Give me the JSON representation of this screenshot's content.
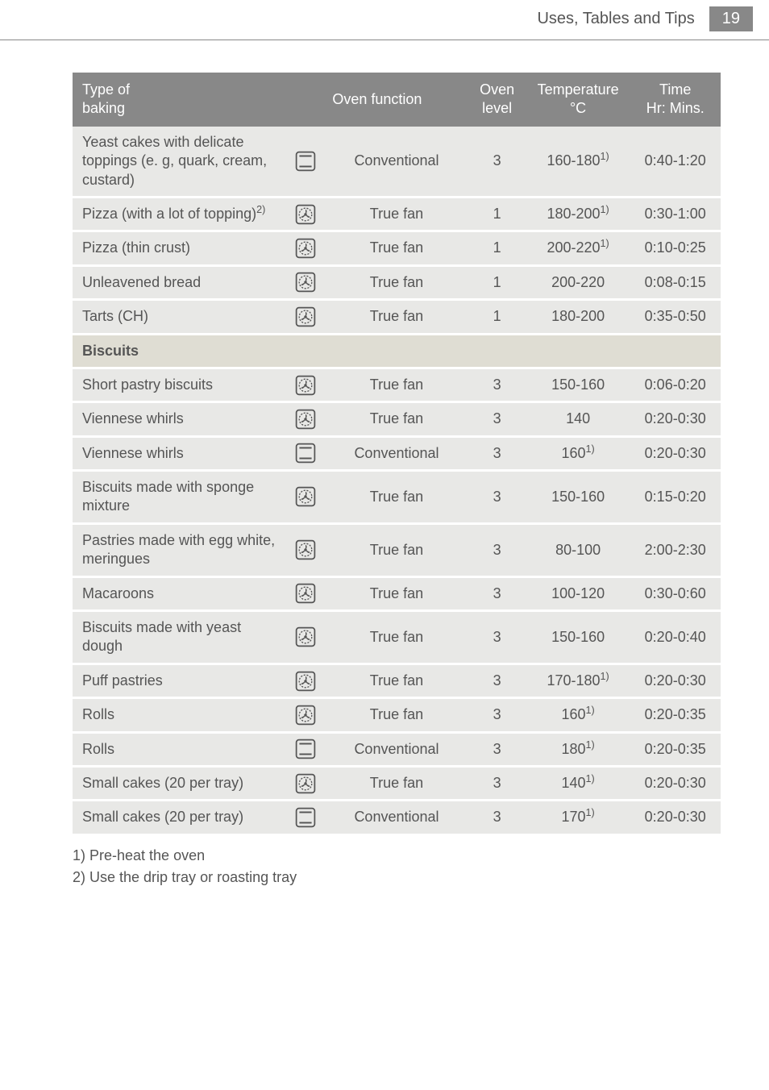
{
  "header": {
    "title": "Uses, Tables and Tips",
    "page_number": "19"
  },
  "table": {
    "columns": {
      "type": "Type of\nbaking",
      "function": "Oven function",
      "level": "Oven\nlevel",
      "temp": "Temperature\n°C",
      "time": "Time\nHr: Mins."
    },
    "rows": [
      {
        "type": "Yeast cakes with delicate toppings (e. g, quark, cream, custard)",
        "icon": "conventional",
        "func": "Conventional",
        "level": "3",
        "temp": "160-180",
        "temp_sup": "1)",
        "time": "0:40-1:20"
      },
      {
        "type": "Pizza (with a lot of topping)",
        "type_sup": "2)",
        "icon": "fan",
        "func": "True fan",
        "level": "1",
        "temp": "180-200",
        "temp_sup": "1)",
        "time": "0:30-1:00"
      },
      {
        "type": "Pizza (thin crust)",
        "icon": "fan",
        "func": "True fan",
        "level": "1",
        "temp": "200-220",
        "temp_sup": "1)",
        "time": "0:10-0:25"
      },
      {
        "type": "Unleavened bread",
        "icon": "fan",
        "func": "True fan",
        "level": "1",
        "temp": "200-220",
        "time": "0:08-0:15"
      },
      {
        "type": "Tarts (CH)",
        "icon": "fan",
        "func": "True fan",
        "level": "1",
        "temp": "180-200",
        "time": "0:35-0:50"
      },
      {
        "section": "Biscuits"
      },
      {
        "type": "Short pastry biscuits",
        "icon": "fan",
        "func": "True fan",
        "level": "3",
        "temp": "150-160",
        "time": "0:06-0:20"
      },
      {
        "type": "Viennese whirls",
        "icon": "fan",
        "func": "True fan",
        "level": "3",
        "temp": "140",
        "time": "0:20-0:30"
      },
      {
        "type": "Viennese whirls",
        "icon": "conventional",
        "func": "Conventional",
        "level": "3",
        "temp": "160",
        "temp_sup": "1)",
        "time": "0:20-0:30"
      },
      {
        "type": "Biscuits made with sponge mixture",
        "icon": "fan",
        "func": "True fan",
        "level": "3",
        "temp": "150-160",
        "time": "0:15-0:20"
      },
      {
        "type": "Pastries made with egg white, meringues",
        "icon": "fan",
        "func": "True fan",
        "level": "3",
        "temp": "80-100",
        "time": "2:00-2:30"
      },
      {
        "type": "Macaroons",
        "icon": "fan",
        "func": "True fan",
        "level": "3",
        "temp": "100-120",
        "time": "0:30-0:60"
      },
      {
        "type": "Biscuits made with yeast dough",
        "icon": "fan",
        "func": "True fan",
        "level": "3",
        "temp": "150-160",
        "time": "0:20-0:40"
      },
      {
        "type": "Puff pastries",
        "icon": "fan",
        "func": "True fan",
        "level": "3",
        "temp": "170-180",
        "temp_sup": "1)",
        "time": "0:20-0:30"
      },
      {
        "type": "Rolls",
        "icon": "fan",
        "func": "True fan",
        "level": "3",
        "temp": "160",
        "temp_sup": "1)",
        "time": "0:20-0:35"
      },
      {
        "type": "Rolls",
        "icon": "conventional",
        "func": "Conventional",
        "level": "3",
        "temp": "180",
        "temp_sup": "1)",
        "time": "0:20-0:35"
      },
      {
        "type": "Small cakes (20 per tray)",
        "icon": "fan",
        "func": "True fan",
        "level": "3",
        "temp": "140",
        "temp_sup": "1)",
        "time": "0:20-0:30"
      },
      {
        "type": "Small cakes (20 per tray)",
        "icon": "conventional",
        "func": "Conventional",
        "level": "3",
        "temp": "170",
        "temp_sup": "1)",
        "time": "0:20-0:30"
      }
    ]
  },
  "footnotes": [
    "1) Pre-heat the oven",
    "2) Use the drip tray or roasting tray"
  ],
  "icons": {
    "fan": "fan-icon",
    "conventional": "conventional-icon"
  },
  "colors": {
    "header_bg": "#888888",
    "header_fg": "#ffffff",
    "row_bg": "#e8e8e6",
    "section_bg": "#dfddd3",
    "text": "#555555",
    "rule": "#888888"
  }
}
